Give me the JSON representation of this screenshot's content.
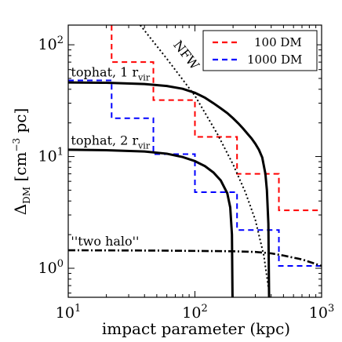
{
  "chart_data": {
    "type": "line",
    "title": "",
    "xlabel": "impact parameter (kpc)",
    "ylabel_main": "Δ",
    "ylabel_sub": "DM",
    "ylabel_rest": " [cm",
    "ylabel_sup": "−3",
    "ylabel_end": " pc]",
    "xscale": "log",
    "yscale": "log",
    "xlim": [
      10,
      1000
    ],
    "ylim": [
      0.55,
      150
    ],
    "grid": false,
    "legend_position": "top-right",
    "x_ticks": [
      {
        "value": 10,
        "base": "10",
        "exp": "1"
      },
      {
        "value": 100,
        "base": "10",
        "exp": "2"
      },
      {
        "value": 1000,
        "base": "10",
        "exp": "3"
      }
    ],
    "y_ticks": [
      {
        "value": 1,
        "base": "10",
        "exp": "0"
      },
      {
        "value": 10,
        "base": "10",
        "exp": "1"
      },
      {
        "value": 100,
        "base": "10",
        "exp": "2"
      }
    ],
    "series": [
      {
        "name": "100 DM",
        "style": "dashed",
        "color": "#ff0000",
        "step": true,
        "x": [
          22,
          22,
          47,
          47,
          100,
          100,
          215,
          215,
          460,
          460,
          1000
        ],
        "y": [
          150,
          70,
          70,
          32,
          32,
          15,
          15,
          7,
          7,
          3.3,
          3.3
        ]
      },
      {
        "name": "1000 DM",
        "style": "dashed",
        "color": "#0000ff",
        "step": true,
        "x": [
          10,
          22,
          22,
          47,
          47,
          100,
          100,
          215,
          215,
          460,
          460,
          1000
        ],
        "y": [
          48,
          48,
          22,
          22,
          10.5,
          10.5,
          4.8,
          4.8,
          2.2,
          2.2,
          1.05,
          1.05
        ]
      },
      {
        "style": "solid",
        "color": "#000000",
        "x": [
          10,
          20,
          40,
          60,
          80,
          100,
          120,
          140,
          160,
          180,
          200,
          220,
          240,
          260,
          280,
          300,
          320,
          340,
          360,
          370,
          380,
          385
        ],
        "y": [
          46,
          45.7,
          44.5,
          42.8,
          40.4,
          37.2,
          33.6,
          30,
          27,
          24.5,
          22,
          19.8,
          17.8,
          16,
          14.5,
          13,
          11.5,
          9.8,
          7,
          5,
          2.5,
          0.55
        ]
      },
      {
        "style": "solid",
        "color": "#000000",
        "x": [
          10,
          20,
          40,
          60,
          80,
          100,
          120,
          140,
          160,
          180,
          190,
          196,
          198
        ],
        "y": [
          11.5,
          11.4,
          11.1,
          10.6,
          9.9,
          9.1,
          8.2,
          7.2,
          6.1,
          4.7,
          3.5,
          2,
          0.55
        ]
      },
      {
        "style": "dotted",
        "color": "#000000",
        "x": [
          37,
          60,
          100,
          150,
          200,
          250,
          300,
          350,
          390
        ],
        "y": [
          150,
          75,
          35,
          16,
          8.5,
          4.8,
          2.7,
          1.3,
          0.55
        ]
      },
      {
        "style": "dashdot",
        "color": "#000000",
        "x": [
          10,
          50,
          100,
          200,
          300,
          400,
          500,
          700,
          1000
        ],
        "y": [
          1.45,
          1.44,
          1.43,
          1.42,
          1.4,
          1.36,
          1.3,
          1.2,
          1.05
        ]
      }
    ],
    "annotations": [
      {
        "text_main": "tophat, 1 r",
        "text_sub": "vir",
        "x": 10.5,
        "y": 52
      },
      {
        "text_main": "tophat, 2 r",
        "text_sub": "vir",
        "x": 10.5,
        "y": 12.8
      },
      {
        "text_main": "''two halo''",
        "text_sub": "",
        "x": 10.5,
        "y": 1.6
      },
      {
        "text_main": "NFW",
        "text_sub": "",
        "x": 67,
        "y": 100
      }
    ]
  },
  "colors": {
    "red": "#ff0000",
    "blue": "#0000ff",
    "black": "#000000"
  }
}
